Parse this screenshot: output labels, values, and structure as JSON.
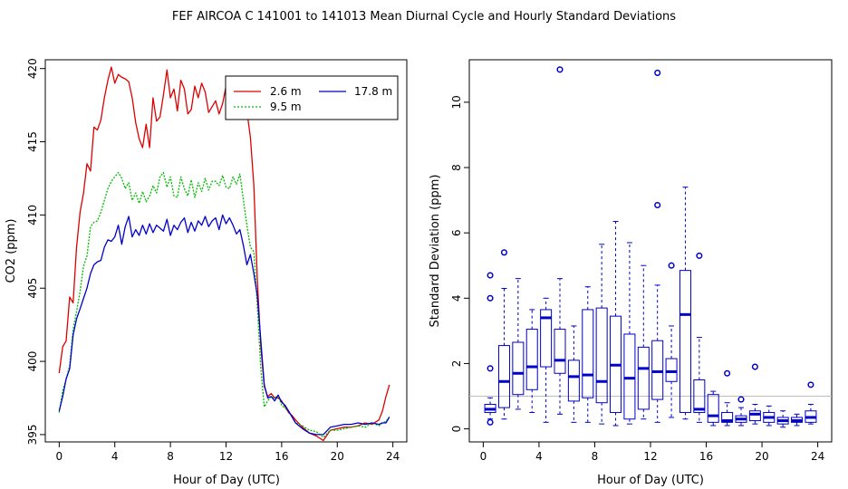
{
  "title": "FEF   AIRCOA C   141001 to 141013   Mean Diurnal Cycle and Hourly Standard Deviations",
  "chart_data": [
    {
      "type": "line",
      "xlabel": "Hour of Day (UTC)",
      "ylabel": "CO2 (ppm)",
      "xlim": [
        -1,
        25
      ],
      "ylim": [
        394.5,
        420.6
      ],
      "xticks": [
        0,
        4,
        8,
        12,
        16,
        20,
        24
      ],
      "yticks": [
        395,
        400,
        405,
        410,
        415,
        420
      ],
      "legend": "top-right",
      "legend_entries": [
        "2.6 m",
        "9.5 m",
        "17.8 m"
      ],
      "series": [
        {
          "name": "2.6 m",
          "color": "#dd0000",
          "x": [
            0,
            0.25,
            0.5,
            0.75,
            1,
            1.25,
            1.5,
            1.75,
            2,
            2.25,
            2.5,
            2.75,
            3,
            3.25,
            3.5,
            3.75,
            4,
            4.25,
            4.5,
            4.75,
            5,
            5.25,
            5.5,
            5.75,
            6,
            6.25,
            6.5,
            6.75,
            7,
            7.25,
            7.5,
            7.75,
            8,
            8.25,
            8.5,
            8.75,
            9,
            9.25,
            9.5,
            9.75,
            10,
            10.25,
            10.5,
            10.75,
            11,
            11.25,
            11.5,
            11.75,
            12,
            12.25,
            12.5,
            12.75,
            13,
            13.25,
            13.5,
            13.75,
            14,
            14.25,
            14.5,
            14.75,
            15,
            15.25,
            15.5,
            15.75,
            16,
            16.25,
            16.5,
            16.75,
            17,
            17.5,
            18,
            18.5,
            19,
            19.5,
            20,
            20.5,
            21,
            21.5,
            22,
            22.5,
            23,
            23.25,
            23.5,
            23.75
          ],
          "values": [
            399.2,
            401.0,
            401.4,
            404.4,
            404.0,
            407.8,
            410.2,
            411.5,
            413.5,
            413.0,
            416.0,
            415.8,
            416.5,
            418.0,
            419.2,
            420.1,
            419.0,
            419.6,
            419.4,
            419.3,
            419.1,
            418.0,
            416.3,
            415.2,
            414.6,
            416.2,
            414.6,
            418.0,
            416.4,
            416.7,
            418.2,
            419.9,
            418.0,
            418.6,
            417.1,
            419.2,
            418.6,
            416.9,
            417.2,
            418.8,
            418.0,
            419.0,
            418.4,
            417.0,
            417.4,
            417.8,
            416.9,
            417.6,
            418.8,
            419.3,
            419.0,
            418.0,
            417.0,
            417.6,
            417.1,
            415.3,
            412.0,
            405.6,
            401.0,
            398.3,
            397.6,
            397.8,
            397.5,
            397.5,
            397.3,
            396.9,
            396.5,
            396.3,
            396.0,
            395.5,
            395.1,
            394.9,
            394.6,
            395.3,
            395.4,
            395.5,
            395.5,
            395.6,
            395.8,
            395.7,
            396.0,
            396.6,
            397.6,
            398.4
          ]
        },
        {
          "name": "9.5 m",
          "color": "#00bb00",
          "x": [
            0,
            0.25,
            0.5,
            0.75,
            1,
            1.25,
            1.5,
            1.75,
            2,
            2.25,
            2.5,
            2.75,
            3,
            3.25,
            3.5,
            3.75,
            4,
            4.25,
            4.5,
            4.75,
            5,
            5.25,
            5.5,
            5.75,
            6,
            6.25,
            6.5,
            6.75,
            7,
            7.25,
            7.5,
            7.75,
            8,
            8.25,
            8.5,
            8.75,
            9,
            9.25,
            9.5,
            9.75,
            10,
            10.25,
            10.5,
            10.75,
            11,
            11.25,
            11.5,
            11.75,
            12,
            12.25,
            12.5,
            12.75,
            13,
            13.25,
            13.5,
            13.75,
            14,
            14.25,
            14.5,
            14.75,
            15,
            15.25,
            15.5,
            15.75,
            16,
            16.25,
            16.5,
            16.75,
            17,
            17.5,
            18,
            18.5,
            19,
            19.5,
            20,
            20.5,
            21,
            21.5,
            22,
            22.5,
            23,
            23.25,
            23.5,
            23.75
          ],
          "values": [
            396.5,
            398.0,
            398.8,
            399.7,
            402.2,
            403.4,
            404.8,
            406.5,
            407.2,
            409.2,
            409.5,
            409.6,
            410.2,
            411.0,
            411.8,
            412.3,
            412.6,
            412.9,
            412.5,
            411.8,
            412.2,
            411.0,
            411.5,
            410.8,
            411.6,
            410.9,
            411.3,
            412.0,
            411.5,
            412.6,
            412.9,
            411.9,
            412.6,
            411.3,
            411.2,
            412.6,
            411.8,
            411.3,
            412.4,
            411.2,
            412.2,
            411.6,
            412.5,
            411.7,
            412.3,
            412.3,
            412.0,
            412.7,
            411.9,
            411.8,
            412.6,
            412.1,
            412.8,
            411.0,
            409.3,
            407.8,
            407.5,
            403.8,
            399.5,
            396.9,
            397.3,
            397.6,
            397.5,
            397.7,
            397.0,
            396.8,
            396.6,
            396.2,
            395.8,
            395.6,
            395.3,
            395.2,
            394.8,
            395.3,
            395.3,
            395.4,
            395.5,
            395.6,
            395.5,
            395.8,
            395.6,
            395.8,
            395.9,
            396.2
          ]
        },
        {
          "name": "17.8 m",
          "color": "#0000cc",
          "x": [
            0,
            0.25,
            0.5,
            0.75,
            1,
            1.25,
            1.5,
            1.75,
            2,
            2.25,
            2.5,
            2.75,
            3,
            3.25,
            3.5,
            3.75,
            4,
            4.25,
            4.5,
            4.75,
            5,
            5.25,
            5.5,
            5.75,
            6,
            6.25,
            6.5,
            6.75,
            7,
            7.25,
            7.5,
            7.75,
            8,
            8.25,
            8.5,
            8.75,
            9,
            9.25,
            9.5,
            9.75,
            10,
            10.25,
            10.5,
            10.75,
            11,
            11.25,
            11.5,
            11.75,
            12,
            12.25,
            12.5,
            12.75,
            13,
            13.25,
            13.5,
            13.75,
            14,
            14.25,
            14.5,
            14.75,
            15,
            15.25,
            15.5,
            15.75,
            16,
            16.25,
            16.5,
            16.75,
            17,
            17.5,
            18,
            18.5,
            19,
            19.5,
            20,
            20.5,
            21,
            21.5,
            22,
            22.5,
            23,
            23.25,
            23.5,
            23.75
          ],
          "values": [
            396.6,
            397.6,
            398.8,
            399.5,
            401.8,
            402.9,
            403.6,
            404.3,
            405.0,
            406.0,
            406.6,
            406.8,
            406.9,
            407.8,
            408.3,
            408.2,
            408.5,
            409.3,
            408.0,
            409.2,
            409.9,
            408.5,
            409.0,
            408.6,
            409.3,
            408.7,
            409.4,
            408.8,
            409.3,
            409.1,
            408.9,
            409.7,
            408.6,
            409.3,
            409.0,
            409.5,
            409.8,
            408.8,
            409.5,
            408.9,
            409.6,
            409.3,
            409.9,
            409.2,
            409.6,
            409.8,
            409.0,
            410.0,
            409.4,
            409.8,
            409.3,
            408.7,
            409.0,
            407.9,
            406.6,
            407.3,
            406.0,
            404.5,
            401.4,
            398.4,
            397.5,
            397.6,
            397.3,
            397.7,
            397.2,
            397.0,
            396.6,
            396.2,
            395.8,
            395.4,
            395.1,
            395.0,
            395.0,
            395.5,
            395.6,
            395.7,
            395.7,
            395.8,
            395.7,
            395.8,
            395.7,
            395.8,
            395.8,
            396.2
          ]
        }
      ]
    },
    {
      "type": "box",
      "xlabel": "Hour of Day (UTC)",
      "ylabel": "Standard Deviation (ppm)",
      "xlim": [
        -1,
        25
      ],
      "ylim": [
        -0.4,
        11.3
      ],
      "xticks": [
        0,
        4,
        8,
        12,
        16,
        20,
        24
      ],
      "yticks": [
        0,
        2,
        4,
        6,
        8,
        10
      ],
      "reference_line": 1.0,
      "box_color": "#0000cc",
      "boxes": [
        {
          "x": 0.5,
          "whislo": 0.3,
          "q1": 0.5,
          "med": 0.6,
          "q3": 0.75,
          "whishi": 0.95,
          "fliers": [
            4.7,
            4.0,
            1.85,
            0.2
          ]
        },
        {
          "x": 1.5,
          "whislo": 0.3,
          "q1": 0.65,
          "med": 1.45,
          "q3": 2.55,
          "whishi": 4.3,
          "fliers": [
            5.4
          ]
        },
        {
          "x": 2.5,
          "whislo": 0.6,
          "q1": 1.05,
          "med": 1.7,
          "q3": 2.65,
          "whishi": 4.6,
          "fliers": []
        },
        {
          "x": 3.5,
          "whislo": 0.5,
          "q1": 1.2,
          "med": 1.9,
          "q3": 3.05,
          "whishi": 3.65,
          "fliers": []
        },
        {
          "x": 4.5,
          "whislo": 0.2,
          "q1": 1.9,
          "med": 3.4,
          "q3": 3.65,
          "whishi": 4.0,
          "fliers": []
        },
        {
          "x": 5.5,
          "whislo": 0.45,
          "q1": 1.7,
          "med": 2.1,
          "q3": 3.05,
          "whishi": 4.6,
          "fliers": [
            11.0
          ]
        },
        {
          "x": 6.5,
          "whislo": 0.2,
          "q1": 0.85,
          "med": 1.6,
          "q3": 2.1,
          "whishi": 3.15,
          "fliers": []
        },
        {
          "x": 7.5,
          "whislo": 0.2,
          "q1": 0.95,
          "med": 1.65,
          "q3": 3.65,
          "whishi": 4.35,
          "fliers": []
        },
        {
          "x": 8.5,
          "whislo": 0.15,
          "q1": 0.8,
          "med": 1.45,
          "q3": 3.7,
          "whishi": 5.65,
          "fliers": []
        },
        {
          "x": 9.5,
          "whislo": 0.1,
          "q1": 0.5,
          "med": 1.95,
          "q3": 3.45,
          "whishi": 6.35,
          "fliers": []
        },
        {
          "x": 10.5,
          "whislo": 0.15,
          "q1": 0.3,
          "med": 1.55,
          "q3": 2.9,
          "whishi": 5.7,
          "fliers": []
        },
        {
          "x": 11.5,
          "whislo": 0.3,
          "q1": 0.6,
          "med": 1.85,
          "q3": 2.5,
          "whishi": 5.0,
          "fliers": []
        },
        {
          "x": 12.5,
          "whislo": 0.2,
          "q1": 0.9,
          "med": 1.75,
          "q3": 2.7,
          "whishi": 4.4,
          "fliers": [
            10.9,
            6.85
          ]
        },
        {
          "x": 13.5,
          "whislo": 0.35,
          "q1": 1.45,
          "med": 1.75,
          "q3": 2.15,
          "whishi": 3.15,
          "fliers": [
            5.0
          ]
        },
        {
          "x": 14.5,
          "whislo": 0.3,
          "q1": 0.5,
          "med": 3.5,
          "q3": 4.85,
          "whishi": 7.4,
          "fliers": []
        },
        {
          "x": 15.5,
          "whislo": 0.2,
          "q1": 0.5,
          "med": 0.6,
          "q3": 1.5,
          "whishi": 2.8,
          "fliers": [
            5.3
          ]
        },
        {
          "x": 16.5,
          "whislo": 0.1,
          "q1": 0.2,
          "med": 0.4,
          "q3": 1.05,
          "whishi": 1.15,
          "fliers": []
        },
        {
          "x": 17.5,
          "whislo": 0.1,
          "q1": 0.2,
          "med": 0.25,
          "q3": 0.5,
          "whishi": 0.8,
          "fliers": [
            1.7
          ]
        },
        {
          "x": 18.5,
          "whislo": 0.1,
          "q1": 0.2,
          "med": 0.3,
          "q3": 0.4,
          "whishi": 0.65,
          "fliers": [
            0.9
          ]
        },
        {
          "x": 19.5,
          "whislo": 0.15,
          "q1": 0.25,
          "med": 0.45,
          "q3": 0.55,
          "whishi": 0.75,
          "fliers": [
            1.9
          ]
        },
        {
          "x": 20.5,
          "whislo": 0.1,
          "q1": 0.2,
          "med": 0.35,
          "q3": 0.5,
          "whishi": 0.7,
          "fliers": []
        },
        {
          "x": 21.5,
          "whislo": 0.05,
          "q1": 0.15,
          "med": 0.25,
          "q3": 0.35,
          "whishi": 0.55,
          "fliers": []
        },
        {
          "x": 22.5,
          "whislo": 0.1,
          "q1": 0.2,
          "med": 0.25,
          "q3": 0.35,
          "whishi": 0.45,
          "fliers": []
        },
        {
          "x": 23.5,
          "whislo": 0.15,
          "q1": 0.2,
          "med": 0.35,
          "q3": 0.55,
          "whishi": 0.75,
          "fliers": [
            1.35
          ]
        }
      ]
    }
  ]
}
